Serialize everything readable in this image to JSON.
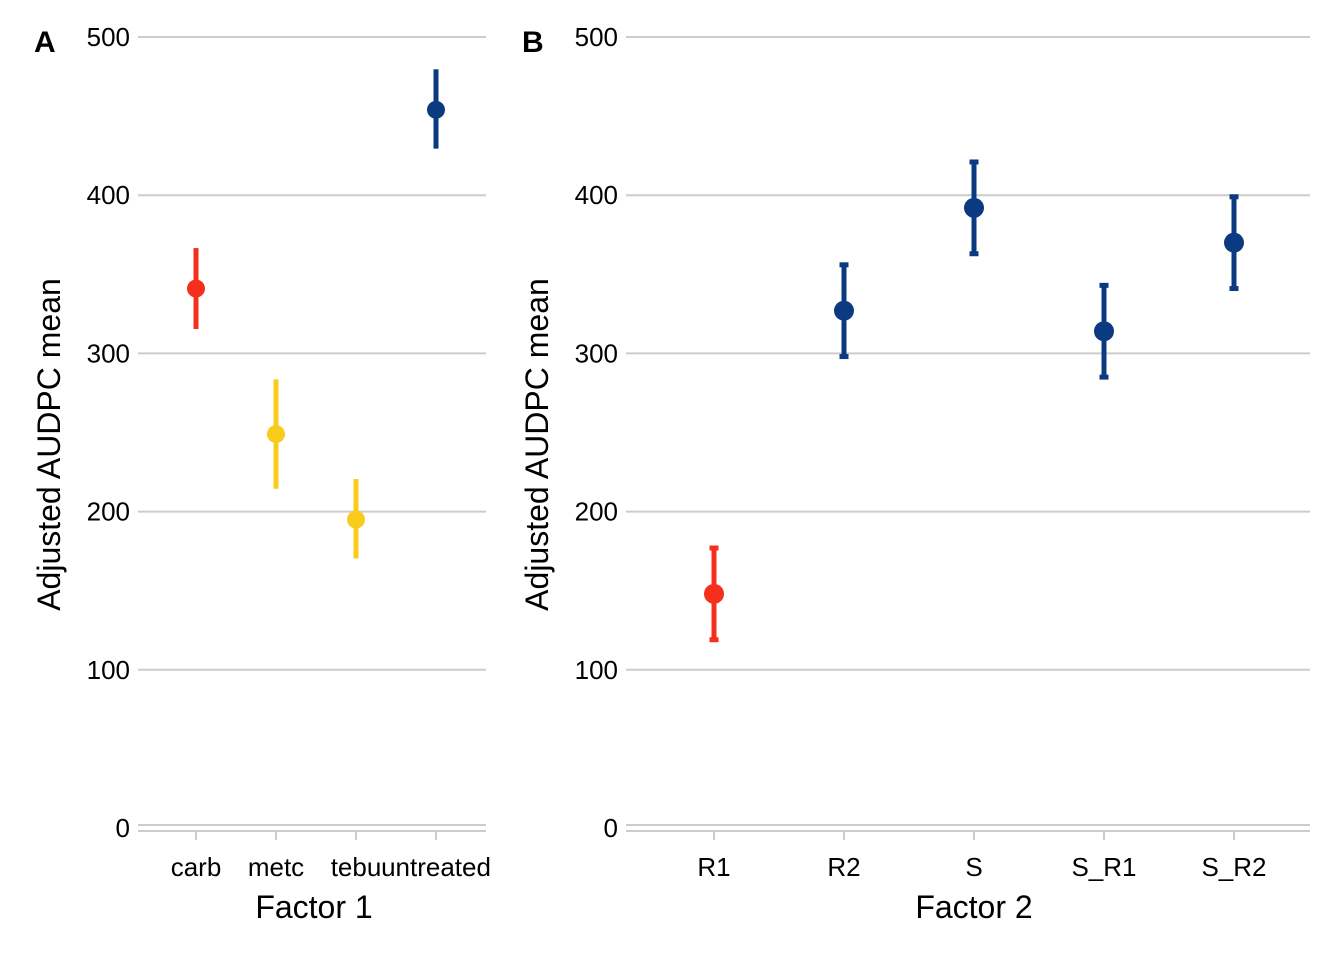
{
  "chart_data": [
    {
      "type": "scatter",
      "tag": "A",
      "xlabel": "Factor 1",
      "ylabel": "Adjusted AUDPC mean",
      "categories": [
        "carb",
        "metc",
        "tebu",
        "untreated"
      ],
      "ylim": [
        0,
        500
      ],
      "yticks": [
        0,
        100,
        200,
        300,
        400,
        500
      ],
      "grid": "horizontal",
      "points": [
        {
          "category": "carb",
          "value": 341,
          "lower": 317,
          "upper": 365,
          "color": "#f4301c"
        },
        {
          "category": "metc",
          "value": 249,
          "lower": 216,
          "upper": 282,
          "color": "#f9cc1c"
        },
        {
          "category": "tebu",
          "value": 195,
          "lower": 172,
          "upper": 219,
          "color": "#f9cc1c"
        },
        {
          "category": "untreated",
          "value": 454,
          "lower": 431,
          "upper": 478,
          "color": "#0c3a80"
        }
      ]
    },
    {
      "type": "scatter",
      "tag": "B",
      "xlabel": "Factor 2",
      "ylabel": "Adjusted AUDPC mean",
      "categories": [
        "R1",
        "R2",
        "S",
        "S_R1",
        "S_R2"
      ],
      "ylim": [
        0,
        500
      ],
      "yticks": [
        0,
        100,
        200,
        300,
        400,
        500
      ],
      "grid": "horizontal",
      "points": [
        {
          "category": "R1",
          "value": 148,
          "lower": 119,
          "upper": 177,
          "color": "#f4301c"
        },
        {
          "category": "R2",
          "value": 327,
          "lower": 298,
          "upper": 356,
          "color": "#0c3a80"
        },
        {
          "category": "S",
          "value": 392,
          "lower": 363,
          "upper": 421,
          "color": "#0c3a80"
        },
        {
          "category": "S_R1",
          "value": 314,
          "lower": 285,
          "upper": 343,
          "color": "#0c3a80"
        },
        {
          "category": "S_R2",
          "value": 370,
          "lower": 341,
          "upper": 399,
          "color": "#0c3a80"
        }
      ]
    }
  ]
}
